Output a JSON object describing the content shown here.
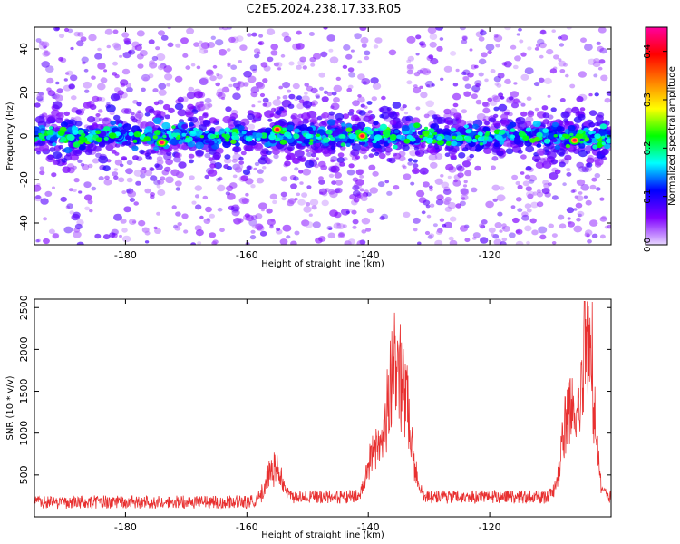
{
  "title": "C2E5.2024.238.17.33.R05",
  "chart_data": [
    {
      "type": "heatmap",
      "title": "C2E5.2024.238.17.33.R05",
      "xlabel": "Height of straight line (km)",
      "ylabel": "Frequency (Hz)",
      "xlim": [
        -195,
        -100
      ],
      "ylim": [
        -50,
        50
      ],
      "x_ticks": [
        -180,
        -160,
        -140,
        -120
      ],
      "y_ticks": [
        -40,
        -20,
        0,
        20,
        40
      ],
      "colorbar": {
        "label": "Normalized spectral amplitude",
        "range": [
          0.0,
          0.45
        ],
        "ticks": [
          0.0,
          0.1,
          0.2,
          0.3,
          0.4
        ],
        "colormap": [
          "#e8d8ff",
          "#8000ff",
          "#0000ff",
          "#00ffff",
          "#00ff00",
          "#ffff00",
          "#ff8000",
          "#ff0000",
          "#ff00a0"
        ]
      },
      "dominant_band": {
        "center_hz": 0,
        "halfwidth_hz": 7
      },
      "hotspots": [
        {
          "x": -174,
          "y": -3,
          "value": 0.44
        },
        {
          "x": -155,
          "y": 3,
          "value": 0.42
        },
        {
          "x": -141,
          "y": 0,
          "value": 0.42
        },
        {
          "x": -106,
          "y": -2,
          "value": 0.44
        }
      ]
    },
    {
      "type": "line",
      "xlabel": "Height of straight line (km)",
      "ylabel": "SNR (10 * v/v)",
      "xlim": [
        -195,
        -100
      ],
      "ylim": [
        0,
        2600
      ],
      "x_ticks": [
        -180,
        -160,
        -140,
        -120
      ],
      "y_ticks": [
        500,
        1000,
        1500,
        2000,
        2500
      ],
      "color": "#e83030",
      "peaks": [
        {
          "x": -155.5,
          "y": 780
        },
        {
          "x": -139,
          "y": 970
        },
        {
          "x": -136,
          "y": 2050
        },
        {
          "x": -134,
          "y": 1780
        },
        {
          "x": -107,
          "y": 1580
        },
        {
          "x": -104,
          "y": 2560
        }
      ]
    }
  ]
}
